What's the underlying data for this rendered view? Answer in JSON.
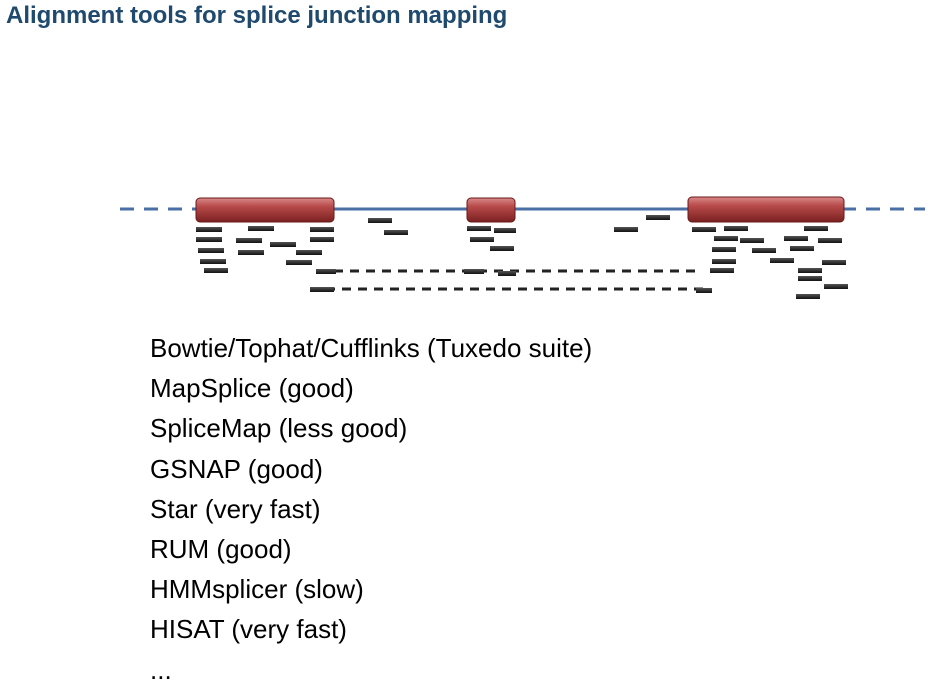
{
  "slide": {
    "title": "Alignment tools for splice junction mapping"
  },
  "colors": {
    "title": "#1f4a6e",
    "exon": "#a63a3a",
    "intron_line": "#4a6fa5",
    "read": "#222222"
  },
  "diagram": {
    "description_icon": "gene-structure-with-mapped-reads",
    "exon_count": 3
  },
  "tools": [
    "Bowtie/Tophat/Cufflinks (Tuxedo suite)",
    "MapSplice (good)",
    "SpliceMap (less good)",
    "GSNAP (good)",
    "Star (very fast)",
    "RUM (good)",
    "HMMsplicer (slow)",
    "HISAT (very fast)",
    "..."
  ]
}
